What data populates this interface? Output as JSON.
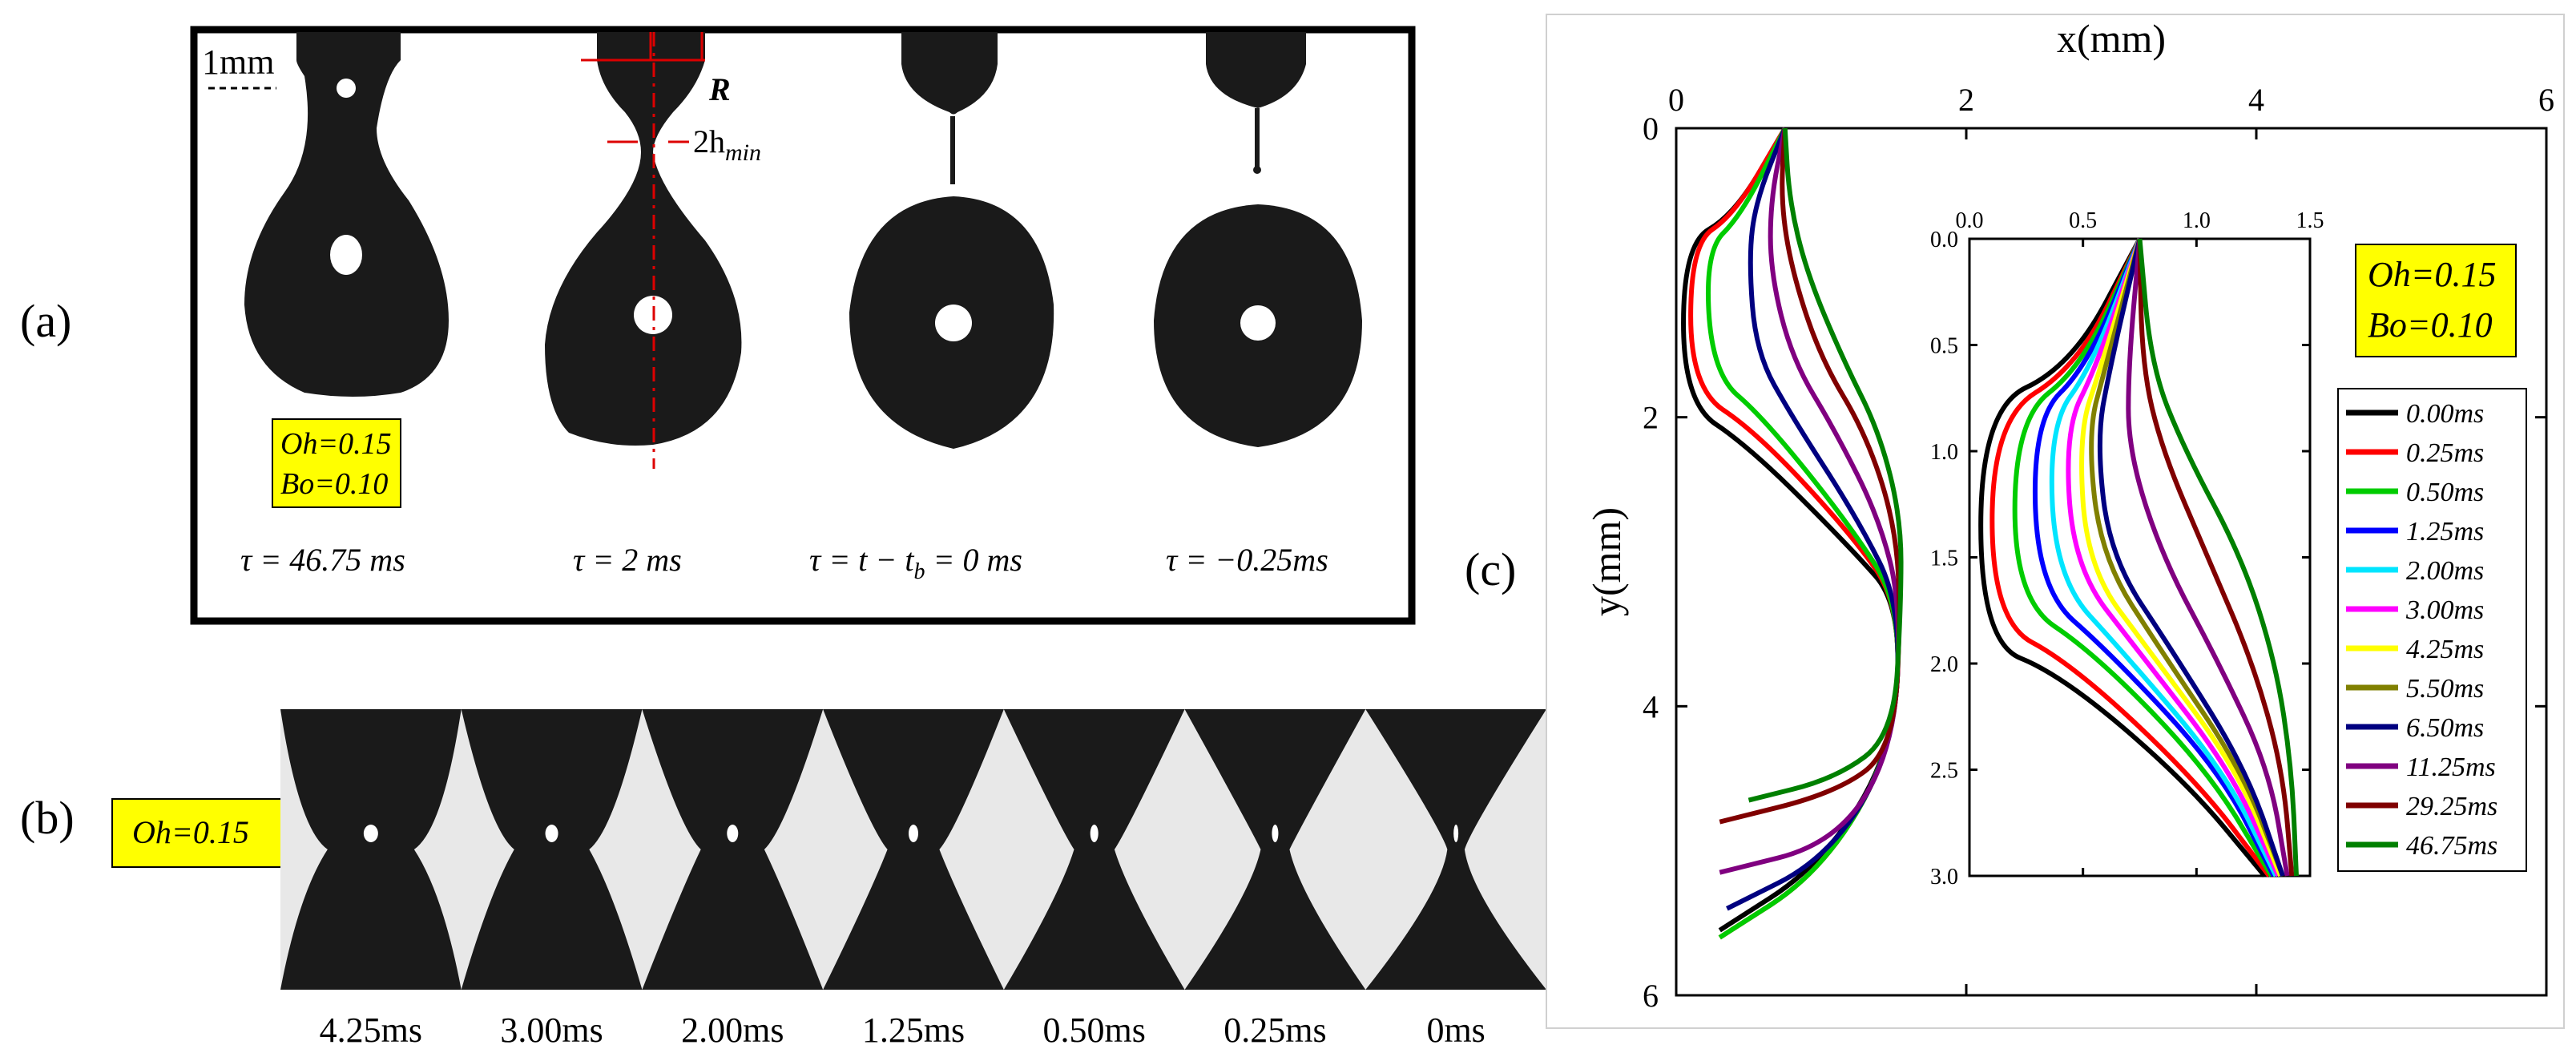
{
  "panel_a": {
    "label": "(a)",
    "scale_label": "1mm",
    "R_label": "R",
    "hmin_label": "2h",
    "hmin_sub": "min",
    "params": [
      "Oh=0.15",
      "Bo=0.10"
    ],
    "frames": [
      "τ = 46.75 ms",
      "τ = 2 ms",
      "τ = t − t",
      "τ = −0.25ms"
    ],
    "frame3_sub": "b",
    "frame3_tail": " = 0 ms"
  },
  "panel_b": {
    "label": "(b)",
    "param": "Oh=0.15",
    "frames": [
      "4.25ms",
      "3.00ms",
      "2.00ms",
      "1.25ms",
      "0.50ms",
      "0.25ms",
      "0ms"
    ]
  },
  "panel_c": {
    "label": "(c)",
    "params": [
      "Oh=0.15",
      "Bo=0.10"
    ],
    "colors": {
      "0.00ms": "#000000",
      "0.25ms": "#ff0000",
      "0.50ms": "#00cc00",
      "1.25ms": "#0000ff",
      "2.00ms": "#00e5ff",
      "3.00ms": "#ff00ff",
      "4.25ms": "#ffff00",
      "5.50ms": "#808000",
      "6.50ms": "#000080",
      "11.25ms": "#800080",
      "29.25ms": "#800000",
      "46.75ms": "#008000"
    },
    "legend": [
      "0.00ms",
      "0.25ms",
      "0.50ms",
      "1.25ms",
      "2.00ms",
      "3.00ms",
      "4.25ms",
      "5.50ms",
      "6.50ms",
      "11.25ms",
      "29.25ms",
      "46.75ms"
    ]
  },
  "chart_data": [
    {
      "type": "line",
      "title": "",
      "xlabel": "x(mm)",
      "ylabel": "y(mm)",
      "xlim": [
        0,
        6
      ],
      "ylim": [
        6,
        0
      ],
      "x_ticks": [
        "0",
        "2",
        "4",
        "6"
      ],
      "y_ticks": [
        "0",
        "2",
        "4",
        "6"
      ],
      "series": [
        {
          "name": "0.00ms",
          "x": [
            0.75,
            0.4,
            0.05,
            0.05,
            0.5,
            1.2,
            1.55,
            1.5,
            1.0,
            0.3
          ],
          "y": [
            0,
            0.6,
            0.8,
            1.9,
            2.2,
            2.9,
            3.3,
            4.3,
            5.1,
            5.55
          ]
        },
        {
          "name": "0.25ms",
          "x": [
            0.75,
            0.4,
            0.1,
            0.1,
            0.55,
            1.2,
            1.55,
            1.5,
            1.0,
            0.3
          ],
          "y": [
            0,
            0.6,
            0.8,
            1.8,
            2.1,
            2.8,
            3.3,
            4.3,
            5.15,
            5.6
          ]
        },
        {
          "name": "0.50ms",
          "x": [
            0.75,
            0.45,
            0.2,
            0.25,
            0.6,
            1.2,
            1.55,
            1.5,
            1.0,
            0.3
          ],
          "y": [
            0,
            0.6,
            0.85,
            1.7,
            2.0,
            2.75,
            3.3,
            4.3,
            5.15,
            5.6
          ]
        },
        {
          "name": "6.50ms",
          "x": [
            0.75,
            0.55,
            0.5,
            0.55,
            0.8,
            1.25,
            1.55,
            1.5,
            1.05,
            0.35
          ],
          "y": [
            0,
            0.5,
            0.9,
            1.55,
            2.0,
            2.7,
            3.3,
            4.3,
            5.05,
            5.4
          ]
        },
        {
          "name": "11.25ms",
          "x": [
            0.75,
            0.65,
            0.65,
            0.8,
            1.1,
            1.4,
            1.55,
            1.5,
            1.1,
            0.3
          ],
          "y": [
            0,
            0.5,
            1.0,
            1.6,
            2.1,
            2.7,
            3.3,
            4.3,
            4.95,
            5.15
          ]
        },
        {
          "name": "29.25ms",
          "x": [
            0.75,
            0.72,
            0.8,
            1.0,
            1.3,
            1.5,
            1.55,
            1.5,
            1.1,
            0.3
          ],
          "y": [
            0,
            0.5,
            1.0,
            1.6,
            2.1,
            2.7,
            3.3,
            4.3,
            4.6,
            4.8
          ]
        },
        {
          "name": "46.75ms",
          "x": [
            0.75,
            0.78,
            0.9,
            1.15,
            1.4,
            1.55,
            1.55,
            1.5,
            1.1,
            0.5
          ],
          "y": [
            0,
            0.5,
            1.0,
            1.6,
            2.1,
            2.7,
            3.3,
            4.2,
            4.5,
            4.65
          ]
        }
      ]
    },
    {
      "type": "line",
      "title": "inset",
      "xlim": [
        0,
        1.5
      ],
      "ylim": [
        3.0,
        0
      ],
      "x_ticks": [
        "0.0",
        "0.5",
        "1.0",
        "1.5"
      ],
      "y_ticks": [
        "0.0",
        "0.5",
        "1.0",
        "1.5",
        "2.0",
        "2.5",
        "3.0"
      ],
      "series": [
        {
          "name": "0.00ms",
          "x": [
            0.75,
            0.45,
            0.05,
            0.05,
            0.4,
            0.95,
            1.3
          ],
          "y": [
            0,
            0.6,
            0.8,
            1.9,
            2.05,
            2.55,
            3.0
          ]
        },
        {
          "name": "0.25ms",
          "x": [
            0.75,
            0.48,
            0.1,
            0.1,
            0.45,
            1.0,
            1.32
          ],
          "y": [
            0,
            0.6,
            0.85,
            1.8,
            2.0,
            2.55,
            3.0
          ]
        },
        {
          "name": "0.50ms",
          "x": [
            0.75,
            0.5,
            0.2,
            0.2,
            0.55,
            1.05,
            1.33
          ],
          "y": [
            0,
            0.6,
            0.85,
            1.7,
            1.95,
            2.5,
            3.0
          ]
        },
        {
          "name": "1.25ms",
          "x": [
            0.75,
            0.52,
            0.28,
            0.3,
            0.62,
            1.1,
            1.34
          ],
          "y": [
            0,
            0.6,
            0.85,
            1.65,
            1.95,
            2.5,
            3.0
          ]
        },
        {
          "name": "2.00ms",
          "x": [
            0.75,
            0.54,
            0.35,
            0.38,
            0.68,
            1.12,
            1.35
          ],
          "y": [
            0,
            0.6,
            0.88,
            1.6,
            1.95,
            2.5,
            3.0
          ]
        },
        {
          "name": "3.00ms",
          "x": [
            0.75,
            0.56,
            0.42,
            0.46,
            0.75,
            1.15,
            1.36
          ],
          "y": [
            0,
            0.6,
            0.9,
            1.55,
            1.95,
            2.5,
            3.0
          ]
        },
        {
          "name": "4.25ms",
          "x": [
            0.75,
            0.58,
            0.48,
            0.52,
            0.8,
            1.18,
            1.37
          ],
          "y": [
            0,
            0.6,
            0.92,
            1.55,
            1.95,
            2.5,
            3.0
          ]
        },
        {
          "name": "5.50ms",
          "x": [
            0.75,
            0.6,
            0.52,
            0.58,
            0.85,
            1.2,
            1.38
          ],
          "y": [
            0,
            0.6,
            0.92,
            1.5,
            1.95,
            2.5,
            3.0
          ]
        },
        {
          "name": "6.50ms",
          "x": [
            0.75,
            0.62,
            0.56,
            0.62,
            0.9,
            1.22,
            1.38
          ],
          "y": [
            0,
            0.6,
            0.95,
            1.5,
            1.95,
            2.5,
            3.0
          ]
        },
        {
          "name": "11.25ms",
          "x": [
            0.75,
            0.7,
            0.7,
            0.85,
            1.1,
            1.32,
            1.4
          ],
          "y": [
            0,
            0.6,
            1.0,
            1.5,
            2.0,
            2.5,
            3.0
          ]
        },
        {
          "name": "29.25ms",
          "x": [
            0.75,
            0.76,
            0.85,
            1.05,
            1.25,
            1.38,
            1.42
          ],
          "y": [
            0,
            0.6,
            1.0,
            1.5,
            2.0,
            2.5,
            3.0
          ]
        },
        {
          "name": "46.75ms",
          "x": [
            0.75,
            0.8,
            0.95,
            1.2,
            1.35,
            1.42,
            1.44
          ],
          "y": [
            0,
            0.6,
            1.0,
            1.5,
            2.0,
            2.5,
            3.0
          ]
        }
      ]
    }
  ]
}
